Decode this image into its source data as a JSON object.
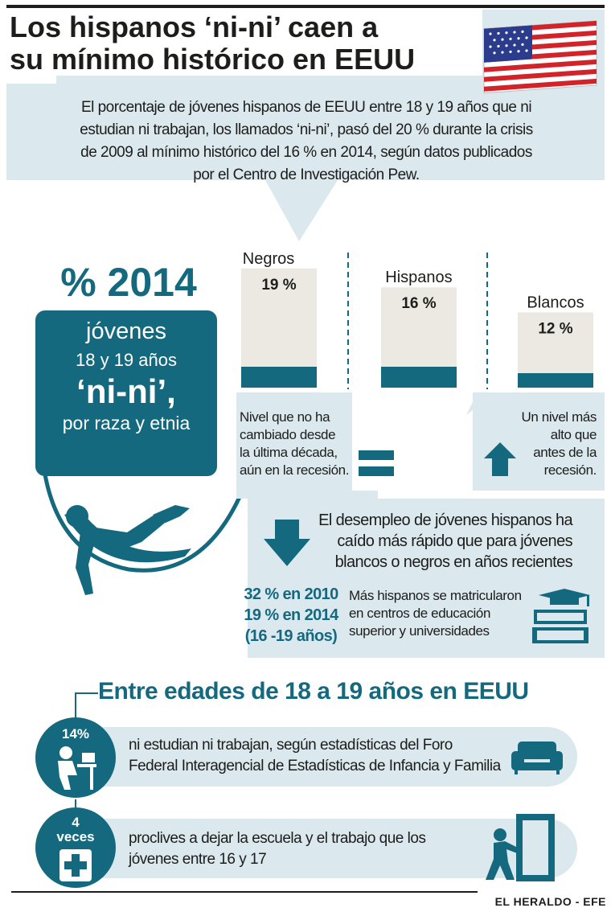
{
  "header": {
    "title_line1": "Los hispanos ‘ni-ni’ caen a",
    "title_line2": "su mínimo histórico en EEUU",
    "intro_lines": [
      "El porcentaje de jóvenes hispanos de EEUU entre 18 y 19 años que ni",
      "estudian ni trabajan, los llamados ‘ni-ni’, pasó del 20 % durante la crisis",
      "de 2009 al mínimo histórico del 16 % en 2014, según datos publicados",
      "por el Centro de Investigación Pew."
    ]
  },
  "left_panel": {
    "heading": "% 2014",
    "line1": "jóvenes",
    "line2": "18 y 19 años",
    "line3": "‘ni-ni’,",
    "line4": "por raza y etnia"
  },
  "notes": {
    "nivel_igual": [
      "Nivel que no ha",
      "cambiado desde",
      "la última década,",
      "aún en la recesión."
    ],
    "nivel_alto": [
      "Un nivel más",
      "alto que",
      "antes de la",
      "recesión."
    ],
    "desempleo": [
      "El desempleo de jóvenes hispanos ha",
      "caído más rápido que para jóvenes",
      "blancos o negros en años recientes"
    ],
    "stats": [
      "32 % en 2010",
      "19 % en 2014",
      "(16 -19 años)"
    ],
    "matricula": [
      "Más hispanos se matricularon",
      "en centros de educación",
      "superior y universidades"
    ]
  },
  "section2": {
    "title": "Entre edades de 18 a 19 años en EEUU",
    "row1": {
      "badge": "14%",
      "text_lines": [
        "ni estudian ni trabajan, según estadísticas del Foro",
        "Federal Interagencial de Estadísticas de Infancia y Familia"
      ]
    },
    "row2": {
      "badge_line1": "4",
      "badge_line2": "veces",
      "text_lines": [
        "proclives a dejar la escuela y el trabajo que los",
        "jóvenes entre 16 y 17"
      ]
    }
  },
  "footer": {
    "credit": "EL HERALDO - EFE"
  },
  "colors": {
    "teal": "#15697f",
    "light_blue": "#dbe8ee",
    "beige": "#ebe9e2",
    "text": "#1d1d1b"
  },
  "icons": [
    "us-flag-icon",
    "hammock-person-icon",
    "equals-icon",
    "arrow-up-icon",
    "arrow-down-icon",
    "books-graduation-icon",
    "person-desk-icon",
    "sofa-icon",
    "medical-cross-icon",
    "person-pushing-door-icon"
  ],
  "chart_data": {
    "type": "bar",
    "categories": [
      "Negros",
      "Hispanos",
      "Blancos"
    ],
    "values": [
      19,
      16,
      12
    ],
    "value_labels": [
      "19 %",
      "16 %",
      "12 %"
    ],
    "unit": "%",
    "title": "% 2014"
  }
}
